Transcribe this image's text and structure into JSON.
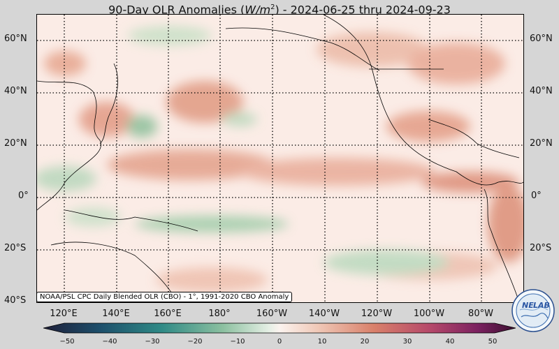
{
  "title": {
    "prefix": "90-Day OLR Anomalies (",
    "unit_base": "W/m",
    "unit_exp": "2",
    "suffix": ") - 2024-06-25 thru 2024-09-23"
  },
  "lat_labels": [
    "60°N",
    "40°N",
    "20°N",
    "0°",
    "20°S",
    "40°S"
  ],
  "lon_labels": [
    "120°E",
    "140°E",
    "160°E",
    "180°",
    "160°W",
    "140°W",
    "120°W",
    "100°W",
    "80°W"
  ],
  "credit": "NOAA/PSL CPC Daily Blended OLR (CBO) - 1°, 1991-2020 CBO Anomaly",
  "colorbar": {
    "ticks": [
      "−50",
      "−40",
      "−30",
      "−20",
      "−10",
      "0",
      "10",
      "20",
      "30",
      "40",
      "50"
    ]
  },
  "logo": {
    "text_left": "NE",
    "text_right": "LAB"
  },
  "colors": {
    "negative_max": "#1f1f3a",
    "negative_mid": "#3c9a86",
    "neutral": "#fbf3ef",
    "positive_mid": "#d9806a",
    "positive_max": "#3b0f2f"
  }
}
